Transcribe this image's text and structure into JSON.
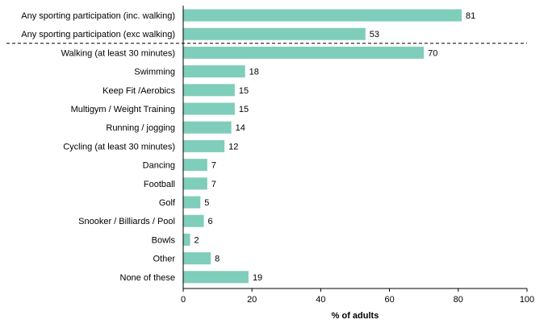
{
  "chart_data": {
    "type": "bar",
    "orientation": "horizontal",
    "title": "",
    "xlabel": "% of adults",
    "ylabel": "",
    "xlim": [
      0,
      100
    ],
    "xticks": [
      0,
      20,
      40,
      60,
      80,
      100
    ],
    "grid": false,
    "bar_color": "#7fcdbb",
    "separator": "dashed line between the 2nd and 3rd categories",
    "categories": [
      "Any sporting participation (inc. walking)",
      "Any sporting participation (exc walking)",
      "Walking (at least 30 minutes)",
      "Swimming",
      "Keep Fit /Aerobics",
      "Multigym / Weight Training",
      "Running / jogging",
      "Cycling (at least 30 minutes)",
      "Dancing",
      "Football",
      "Golf",
      "Snooker / Billiards / Pool",
      "Bowls",
      "Other",
      "None of these"
    ],
    "values": [
      81,
      53,
      70,
      18,
      15,
      15,
      14,
      12,
      7,
      7,
      5,
      6,
      2,
      8,
      19
    ]
  }
}
